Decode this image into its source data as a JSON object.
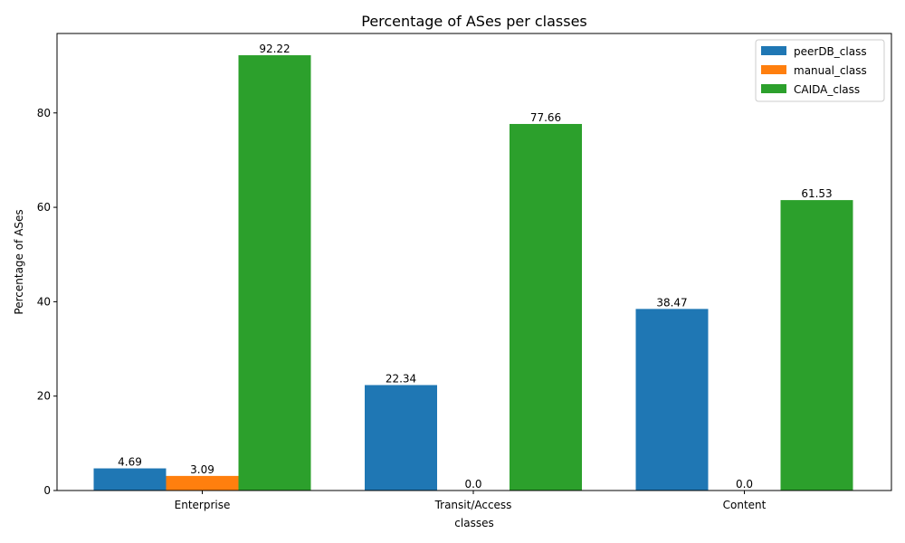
{
  "chart_data": {
    "type": "bar",
    "title": "Percentage of ASes per classes",
    "xlabel": "classes",
    "ylabel": "Percentage of ASes",
    "categories": [
      "Enterprise",
      "Transit/Access",
      "Content"
    ],
    "series": [
      {
        "name": "peerDB_class",
        "color": "#1f77b4",
        "values": [
          4.69,
          22.34,
          38.47
        ],
        "labels": [
          "4.69",
          "22.34",
          "38.47"
        ]
      },
      {
        "name": "manual_class",
        "color": "#ff7f0e",
        "values": [
          3.09,
          0.0,
          0.0
        ],
        "labels": [
          "3.09",
          "0.0",
          "0.0"
        ]
      },
      {
        "name": "CAIDA_class",
        "color": "#2ca02c",
        "values": [
          92.22,
          77.66,
          61.53
        ],
        "labels": [
          "92.22",
          "77.66",
          "61.53"
        ]
      }
    ],
    "ylim": [
      0,
      96.83
    ],
    "yticks": [
      "0",
      "20",
      "40",
      "60",
      "80"
    ],
    "grid": false,
    "legend": "top-right"
  }
}
